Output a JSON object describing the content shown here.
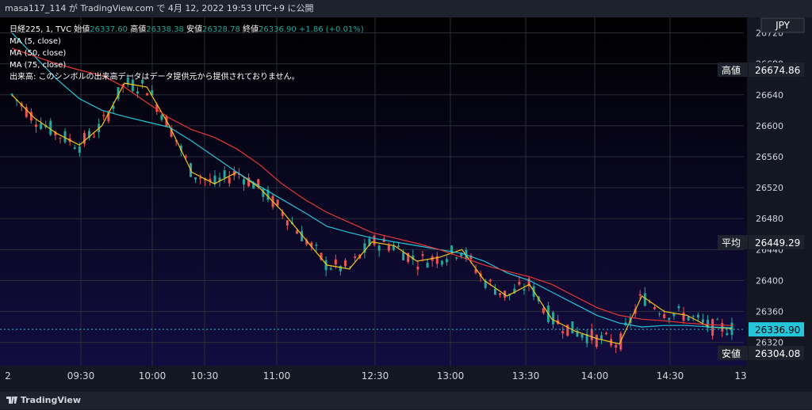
{
  "header": {
    "text": "masa117_114 が TradingView.com で 4月 12, 2022 19:53 UTC+9 に公開"
  },
  "legend": {
    "symbol": "日経225, 1, TVC",
    "open_label": "始値",
    "open": "26337.60",
    "high_label": "高値",
    "high": "26338.38",
    "low_label": "安値",
    "low": "26328.78",
    "close_label": "終値",
    "close": "26336.90",
    "change": "+1.86 (+0.01%)",
    "ma5": "MA (5, close)",
    "ma50": "MA (50, close)",
    "ma75": "MA (75, close)",
    "volume_note": "出来高: このシンボルの出来高データはデータ提供元から提供されておりません。"
  },
  "price_tags": {
    "currency": "JPY",
    "high_label": "高値",
    "high_value": "26674.86",
    "avg_label": "平均",
    "avg_value": "26449.29",
    "current_value": "26336.90",
    "low_label": "安値",
    "low_value": "26304.08"
  },
  "footer": {
    "brand": "TradingView"
  },
  "colors": {
    "up": "#26a69a",
    "down": "#ef5350",
    "ma5": "#f5c518",
    "ma50": "#26c6da",
    "ma75": "#e53935",
    "current_tag": "#26c6da"
  },
  "chart_data": {
    "type": "line",
    "title": "日経225, 1, TVC",
    "ylim": [
      26290,
      26740
    ],
    "yticks": [
      26320,
      26360,
      26400,
      26440,
      26480,
      26520,
      26560,
      26600,
      26640,
      26680,
      26720
    ],
    "xticks": [
      "2",
      "09:30",
      "10:00",
      "10:30",
      "11:00",
      "12:30",
      "13:00",
      "13:30",
      "14:00",
      "14:30",
      "13"
    ],
    "series": [
      {
        "name": "MA (5, close)",
        "values": [
          26640,
          26610,
          26590,
          26575,
          26600,
          26655,
          26650,
          26600,
          26540,
          26525,
          26540,
          26520,
          26490,
          26455,
          26420,
          26415,
          26450,
          26445,
          26425,
          26430,
          26440,
          26400,
          26380,
          26395,
          26350,
          26335,
          26325,
          26318,
          26380,
          26360,
          26355,
          26340,
          26338
        ]
      },
      {
        "name": "MA (50, close)",
        "values": [
          26720,
          26690,
          26660,
          26635,
          26620,
          26612,
          26605,
          26598,
          26580,
          26560,
          26540,
          26522,
          26505,
          26488,
          26470,
          26462,
          26455,
          26450,
          26445,
          26440,
          26435,
          26425,
          26410,
          26400,
          26385,
          26370,
          26355,
          26345,
          26340,
          26342,
          26342,
          26340,
          26339
        ]
      },
      {
        "name": "MA (75, close)",
        "values": [
          26700,
          26690,
          26680,
          26672,
          26665,
          26650,
          26630,
          26610,
          26595,
          26585,
          26570,
          26550,
          26525,
          26505,
          26488,
          26475,
          26462,
          26455,
          26448,
          26440,
          26430,
          26420,
          26412,
          26405,
          26395,
          26380,
          26365,
          26355,
          26350,
          26348,
          26345,
          26343,
          26342
        ]
      }
    ]
  }
}
